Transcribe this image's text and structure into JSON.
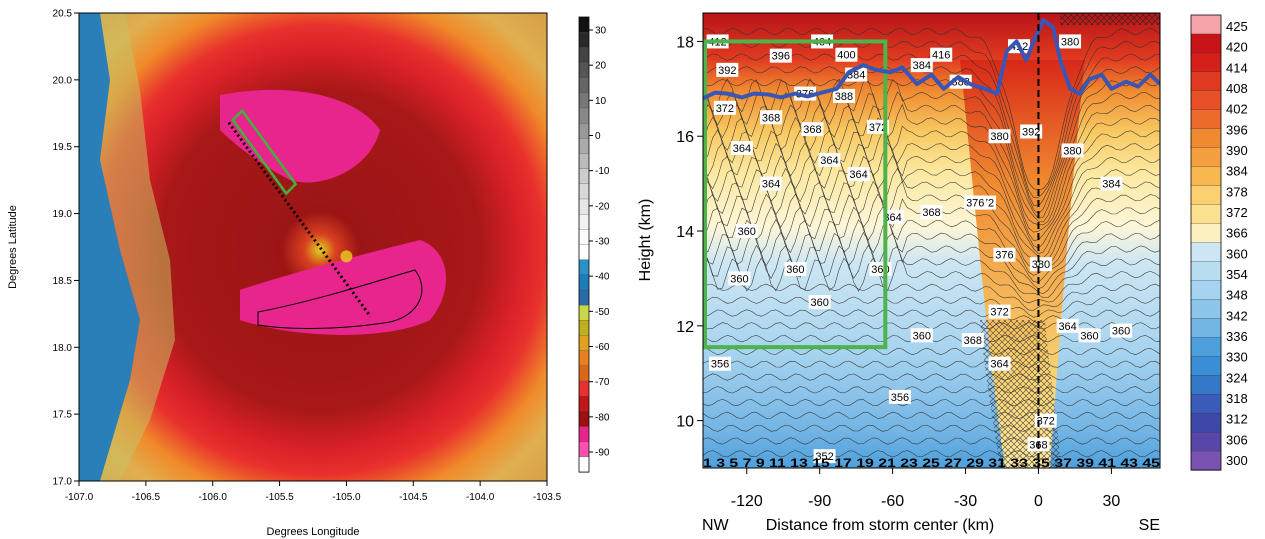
{
  "chart_data": [
    {
      "type": "heatmap",
      "title": "",
      "xlabel": "Degrees Longitude",
      "ylabel": "Degrees Latitude",
      "xlim": [
        -107.0,
        -103.5
      ],
      "ylim": [
        17.0,
        20.5
      ],
      "xticks": [
        "-107.0",
        "-106.5",
        "-106.0",
        "-105.5",
        "-105.0",
        "-104.5",
        "-104.0",
        "-103.5"
      ],
      "yticks": [
        "17.0",
        "17.5",
        "18.0",
        "18.5",
        "19.0",
        "19.5",
        "20.0",
        "20.5"
      ],
      "colorbar_labels": [
        "30",
        "20",
        "10",
        "0",
        "-10",
        "-20",
        "-30",
        "-40",
        "-50",
        "-60",
        "-70",
        "-80",
        "-90"
      ],
      "storm_center": {
        "lon": -105.0,
        "lat": 18.68
      },
      "cross_section_line": {
        "start": {
          "lon": -105.88,
          "lat": 19.68
        },
        "end": {
          "lon": -104.82,
          "lat": 18.23
        }
      },
      "box_region": {
        "corners": [
          {
            "lon": -105.85,
            "lat": 19.7
          },
          {
            "lon": -105.78,
            "lat": 19.77
          },
          {
            "lon": -105.38,
            "lat": 19.22
          },
          {
            "lon": -105.45,
            "lat": 19.15
          }
        ]
      },
      "grid": false
    },
    {
      "type": "heatmap",
      "title": "",
      "xlabel": "Distance from storm center (km)",
      "ylabel": "Height (km)",
      "xlim": [
        -138,
        50
      ],
      "ylim": [
        9,
        18.6
      ],
      "xticks": [
        "-120",
        "-90",
        "-60",
        "-30",
        "0",
        "30"
      ],
      "yticks": [
        "10",
        "12",
        "14",
        "16",
        "18"
      ],
      "direction_labels": {
        "left": "NW",
        "right": "SE"
      },
      "station_labels": "1 3 5 7 9 11 13 15 17 19 21 23 25 27 29 31 33 35 37 39 41 43 45",
      "colorbar_labels": [
        "425",
        "420",
        "414",
        "408",
        "402",
        "396",
        "390",
        "384",
        "378",
        "372",
        "366",
        "360",
        "354",
        "348",
        "342",
        "336",
        "330",
        "324",
        "318",
        "312",
        "306",
        "300"
      ],
      "contour_labels": [
        "412",
        "404",
        "396",
        "392",
        "400",
        "416",
        "412",
        "380",
        "384",
        "388",
        "376",
        "372",
        "368",
        "368",
        "372",
        "364",
        "364",
        "364",
        "364",
        "388",
        "384",
        "380",
        "392",
        "380",
        "384",
        "372",
        "376",
        "368",
        "376",
        "364",
        "372",
        "360",
        "360",
        "360",
        "360",
        "360",
        "380",
        "364",
        "360",
        "356",
        "360",
        "368",
        "364",
        "360",
        "356",
        "372",
        "352",
        "368"
      ],
      "box_region": {
        "x": [
          -138,
          -63
        ],
        "y": [
          11.55,
          18.0
        ]
      },
      "tropopause_line": {
        "x": [
          -138,
          -133,
          -128,
          -122,
          -117,
          -111,
          -106,
          -100,
          -95,
          -89,
          -83,
          -78,
          -72,
          -67,
          -61,
          -56,
          -50,
          -44,
          -39,
          -33,
          -28,
          -22,
          -17,
          -13,
          -9,
          -5,
          -2,
          2,
          6,
          9,
          13,
          17,
          21,
          26,
          30,
          36,
          41,
          46,
          50
        ],
        "y": [
          16.8,
          16.92,
          16.9,
          16.82,
          16.9,
          16.88,
          16.82,
          16.9,
          16.84,
          16.92,
          17.0,
          17.35,
          17.5,
          17.4,
          17.35,
          17.45,
          17.1,
          17.3,
          17.0,
          17.25,
          17.1,
          17.0,
          16.9,
          17.8,
          18.0,
          17.6,
          18.0,
          18.45,
          18.3,
          17.6,
          17.0,
          16.9,
          17.2,
          17.3,
          17.0,
          17.15,
          17.05,
          17.3,
          17.1
        ]
      },
      "grid": false
    }
  ]
}
